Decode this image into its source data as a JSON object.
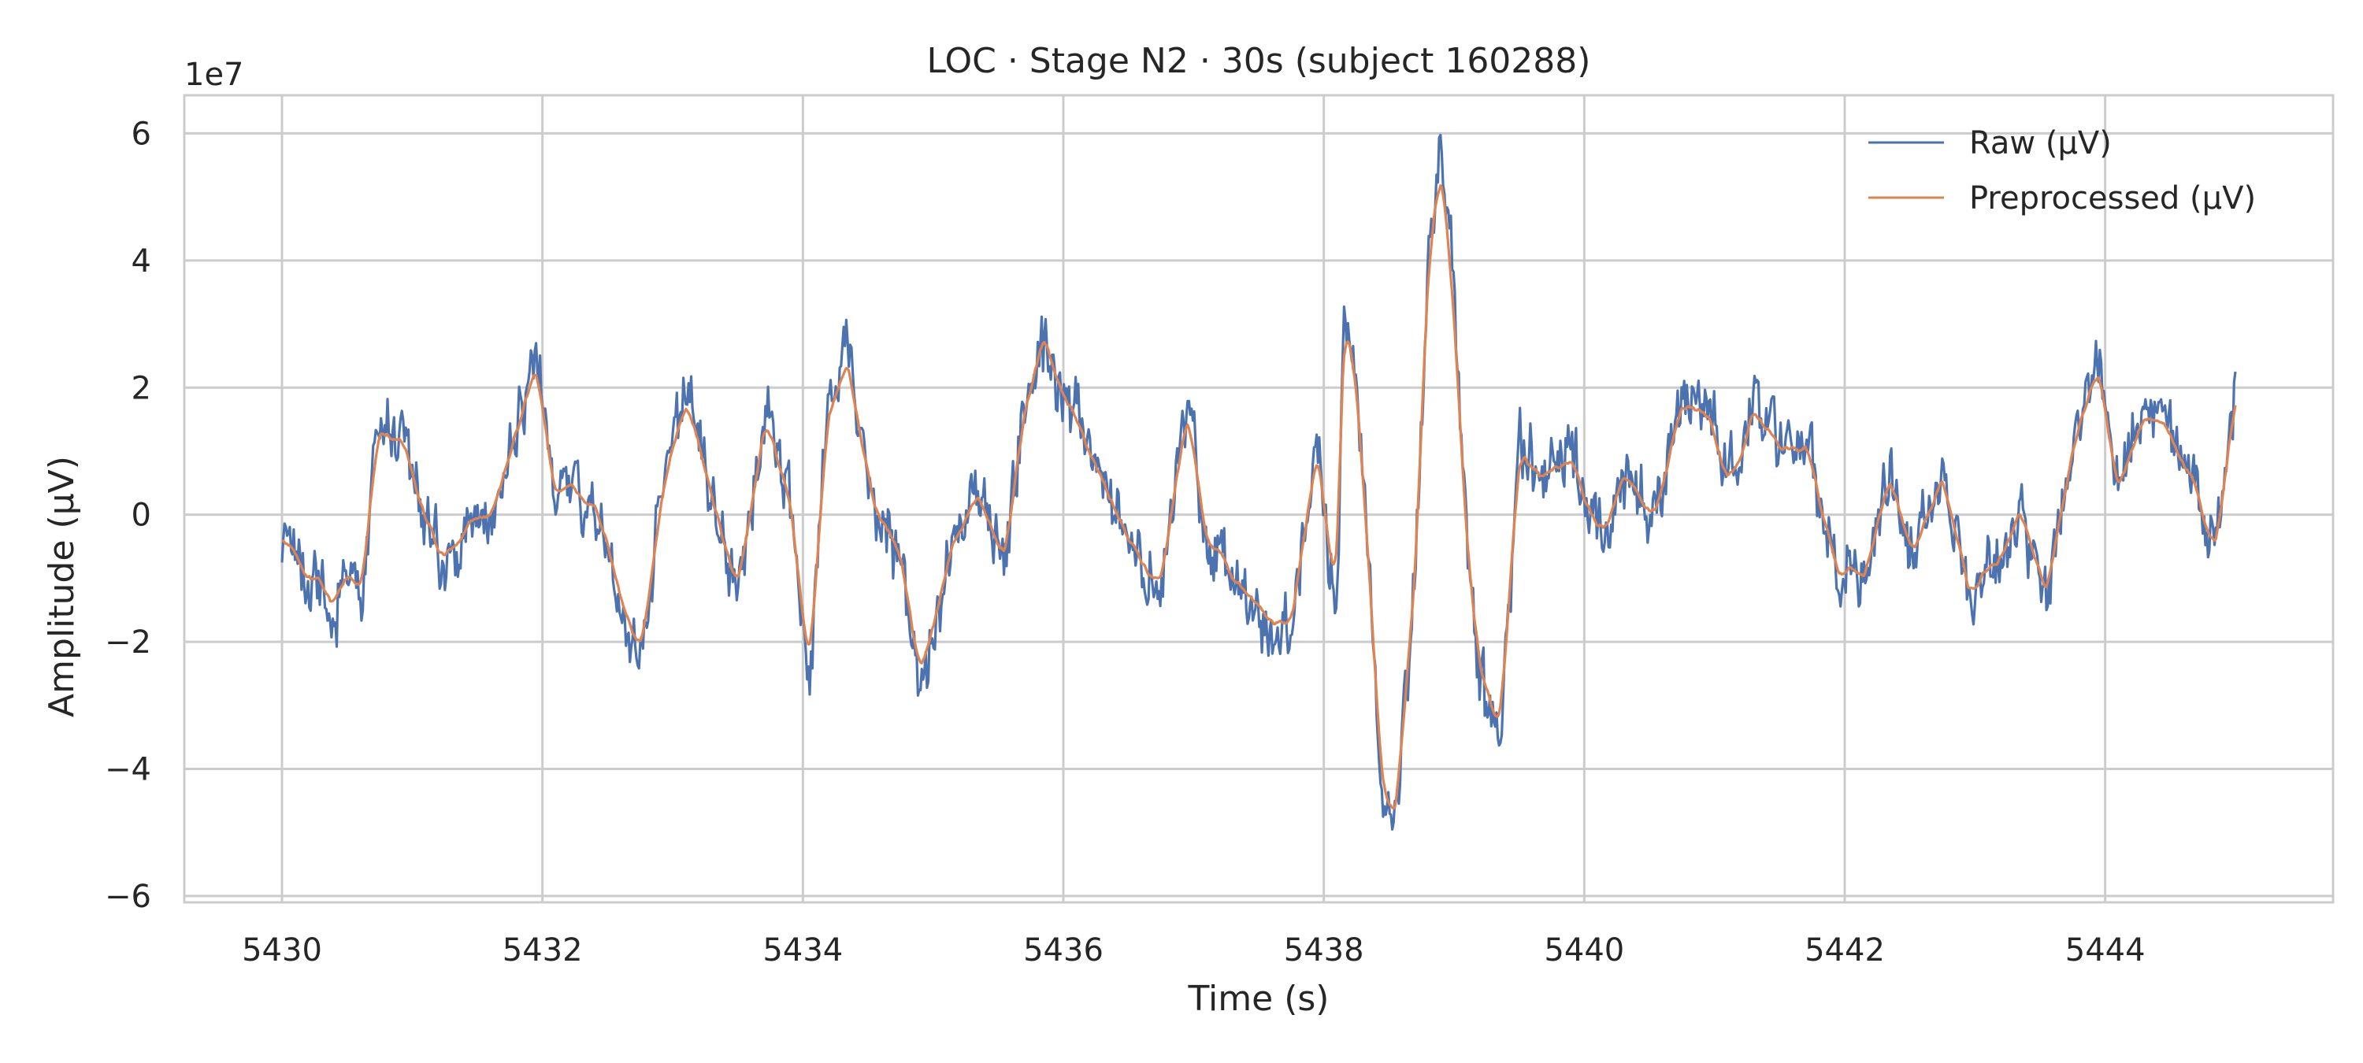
{
  "chart_data": {
    "type": "line",
    "title": "LOC · Stage N2 · 30s (subject 160288)",
    "xlabel": "Time (s)",
    "ylabel": "Amplitude (µV)",
    "y_scale_label": "1e7",
    "xlim": [
      5429.25,
      5445.75
    ],
    "ylim": [
      -6.1,
      6.6
    ],
    "x_ticks": [
      5430,
      5432,
      5434,
      5436,
      5438,
      5440,
      5442,
      5444
    ],
    "x_tick_labels": [
      "5430",
      "5432",
      "5434",
      "5436",
      "5438",
      "5440",
      "5442",
      "5444"
    ],
    "y_ticks": [
      -6,
      -4,
      -2,
      0,
      2,
      4,
      6
    ],
    "y_tick_labels": [
      "−6",
      "−4",
      "−2",
      "0",
      "2",
      "4",
      "6"
    ],
    "grid": true,
    "legend_position": "top-right",
    "series": [
      {
        "name": "Raw (µV)",
        "color": "#4c72b0",
        "x": [
          5430.0,
          5430.3,
          5430.6,
          5430.75,
          5430.9,
          5431.2,
          5431.6,
          5431.95,
          5432.1,
          5432.4,
          5432.65,
          5432.75,
          5432.95,
          5433.1,
          5433.3,
          5433.5,
          5433.7,
          5433.9,
          5434.05,
          5434.2,
          5434.35,
          5434.55,
          5434.75,
          5434.9,
          5435.15,
          5435.35,
          5435.55,
          5435.7,
          5435.85,
          5436.1,
          5436.3,
          5436.5,
          5436.75,
          5436.95,
          5437.1,
          5437.3,
          5437.5,
          5437.75,
          5437.95,
          5438.1,
          5438.15,
          5438.25,
          5438.45,
          5438.55,
          5438.7,
          5438.8,
          5438.9,
          5439.0,
          5439.1,
          5439.2,
          5439.35,
          5439.5,
          5439.7,
          5439.95,
          5440.1,
          5440.3,
          5440.55,
          5440.75,
          5440.95,
          5441.1,
          5441.3,
          5441.5,
          5441.7,
          5441.95,
          5442.15,
          5442.35,
          5442.55,
          5442.75,
          5442.95,
          5443.15,
          5443.35,
          5443.55,
          5443.75,
          5443.95,
          5444.1,
          5444.3,
          5444.5,
          5444.7,
          5444.85,
          5445.0
        ],
        "y": [
          -0.4,
          -1.2,
          -1.3,
          1.5,
          1.3,
          -0.6,
          0.1,
          2.5,
          0.4,
          0.3,
          -1.6,
          -2.4,
          0.6,
          1.9,
          0.4,
          -1.3,
          1.6,
          0.3,
          -2.9,
          1.9,
          2.6,
          0.2,
          -0.8,
          -2.6,
          -0.6,
          0.3,
          -0.9,
          1.9,
          2.5,
          1.5,
          0.6,
          -0.5,
          -1.1,
          1.5,
          -0.3,
          -1.2,
          -1.5,
          -1.9,
          1.1,
          -1.3,
          3.3,
          2.1,
          -4.4,
          -4.9,
          -1.0,
          4.0,
          6.1,
          3.4,
          -0.5,
          -2.5,
          -3.6,
          0.9,
          0.7,
          0.8,
          -0.4,
          0.8,
          0.0,
          1.9,
          1.7,
          0.5,
          1.8,
          1.0,
          1.2,
          -0.9,
          -1.1,
          0.6,
          -0.7,
          0.8,
          -1.3,
          -0.9,
          0.2,
          -1.5,
          1.2,
          2.6,
          0.4,
          1.7,
          1.4,
          0.5,
          -0.9,
          2.3
        ]
      },
      {
        "name": "Preprocessed (µV)",
        "color": "#dd8452",
        "x": [
          5430.0,
          5430.3,
          5430.6,
          5430.75,
          5430.9,
          5431.2,
          5431.6,
          5431.95,
          5432.1,
          5432.4,
          5432.65,
          5432.75,
          5432.95,
          5433.1,
          5433.3,
          5433.5,
          5433.7,
          5433.9,
          5434.05,
          5434.2,
          5434.35,
          5434.55,
          5434.75,
          5434.9,
          5435.15,
          5435.35,
          5435.55,
          5435.7,
          5435.85,
          5436.1,
          5436.3,
          5436.5,
          5436.75,
          5436.95,
          5437.1,
          5437.3,
          5437.5,
          5437.75,
          5437.95,
          5438.1,
          5438.15,
          5438.25,
          5438.45,
          5438.55,
          5438.7,
          5438.8,
          5438.9,
          5439.0,
          5439.1,
          5439.2,
          5439.35,
          5439.5,
          5439.7,
          5439.95,
          5440.1,
          5440.3,
          5440.55,
          5440.75,
          5440.95,
          5441.1,
          5441.3,
          5441.5,
          5441.7,
          5441.95,
          5442.15,
          5442.35,
          5442.55,
          5442.75,
          5442.95,
          5443.15,
          5443.35,
          5443.55,
          5443.75,
          5443.95,
          5444.1,
          5444.3,
          5444.5,
          5444.7,
          5444.85,
          5445.0
        ],
        "y": [
          -0.5,
          -1.0,
          -1.1,
          1.2,
          1.1,
          -0.5,
          0.1,
          2.1,
          0.3,
          0.3,
          -1.3,
          -2.0,
          0.4,
          1.5,
          0.4,
          -1.1,
          1.3,
          0.2,
          -2.2,
          1.5,
          2.0,
          0.2,
          -0.6,
          -2.2,
          -0.5,
          0.2,
          -0.7,
          1.5,
          2.9,
          1.3,
          0.5,
          -0.4,
          -0.9,
          1.3,
          -0.2,
          -1.0,
          -1.2,
          -1.6,
          0.9,
          -1.0,
          3.3,
          2.0,
          -4.0,
          -4.8,
          -1.0,
          3.8,
          5.2,
          2.7,
          -0.6,
          -2.3,
          -3.2,
          0.8,
          0.6,
          0.6,
          -0.3,
          0.6,
          0.0,
          1.6,
          1.4,
          0.4,
          1.4,
          0.9,
          1.0,
          -0.8,
          -0.9,
          0.5,
          -0.6,
          0.6,
          -1.1,
          -0.8,
          0.1,
          -1.2,
          1.0,
          2.1,
          0.3,
          1.4,
          1.1,
          0.4,
          -0.7,
          1.8
        ]
      }
    ]
  }
}
